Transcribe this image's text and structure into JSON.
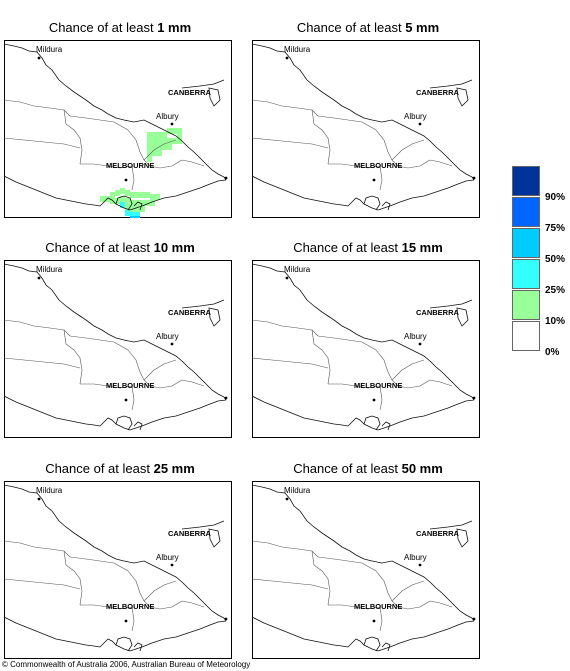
{
  "panels": [
    {
      "prefix": "Chance of at least ",
      "amount": "1 mm",
      "shaded": true
    },
    {
      "prefix": "Chance of at least ",
      "amount": "5 mm",
      "shaded": false
    },
    {
      "prefix": "Chance of at least ",
      "amount": "10 mm",
      "shaded": false
    },
    {
      "prefix": "Chance of at least ",
      "amount": "15 mm",
      "shaded": false
    },
    {
      "prefix": "Chance of at least ",
      "amount": "25 mm",
      "shaded": false
    },
    {
      "prefix": "Chance of at least ",
      "amount": "50 mm",
      "shaded": false
    }
  ],
  "places": {
    "mildura": "Mildura",
    "canberra": "CANBERRA",
    "albury": "Albury",
    "melbourne": "MELBOURNE"
  },
  "legend": {
    "colors": [
      "#003399",
      "#0066ff",
      "#00ccff",
      "#33ffff",
      "#99ff99",
      "#ffffff"
    ],
    "labels": [
      "90%",
      "75%",
      "50%",
      "25%",
      "10%",
      "0%"
    ]
  },
  "copyright": "© Commonwealth of Australia 2006, Australian Bureau of Meteorology"
}
